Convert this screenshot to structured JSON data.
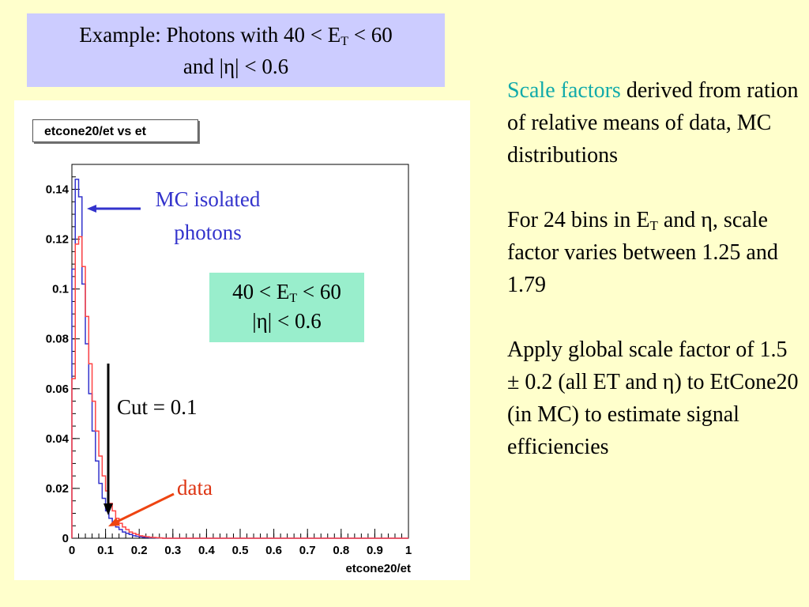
{
  "title_box": {
    "line1_prefix": "Example: Photons with 40 < E",
    "line1_sub": "T",
    "line1_suffix": " < 60",
    "line2": "and |η| < 0.6"
  },
  "annotations": {
    "mc_label_line1": "MC isolated",
    "mc_label_line2": "photons",
    "cut_box_line1_prefix": "40 < E",
    "cut_box_line1_sub": "T",
    "cut_box_line1_suffix": " < 60",
    "cut_box_line2": "|η| < 0.6",
    "cut_label": "Cut = 0.1",
    "data_label": "data"
  },
  "side_text": {
    "p1_highlight": "Scale factors",
    "p1_rest": " derived from ration of relative means of data, MC distributions",
    "p2_prefix": "For 24 bins in E",
    "p2_sub": "T",
    "p2_rest": " and η, scale factor varies between 1.25 and 1.79",
    "p3": "Apply global scale factor of 1.5 ± 0.2 (all ET and η) to EtCone20 (in MC) to estimate signal efficiencies"
  },
  "colors": {
    "background": "#ffffcc",
    "title_box": "#ccccff",
    "cut_box": "#99eecc",
    "mc": "#3333cc",
    "data": "#ff4444",
    "highlight": "#11aaaa"
  },
  "chart_data": {
    "type": "line",
    "title": "etcone20/et vs et",
    "xlabel": "etcone20/et",
    "ylabel": "",
    "xlim": [
      0,
      1
    ],
    "ylim": [
      0,
      0.15
    ],
    "xticks": [
      "0",
      "0.1",
      "0.2",
      "0.3",
      "0.4",
      "0.5",
      "0.6",
      "0.7",
      "0.8",
      "0.9",
      "1"
    ],
    "yticks": [
      "0",
      "0.02",
      "0.04",
      "0.06",
      "0.08",
      "0.1",
      "0.12",
      "0.14"
    ],
    "cut": 0.1,
    "bin_width": 0.01,
    "series": [
      {
        "name": "MC isolated photons",
        "color": "#3333cc",
        "values": [
          0.108,
          0.144,
          0.137,
          0.102,
          0.078,
          0.058,
          0.043,
          0.031,
          0.022,
          0.016,
          0.011,
          0.008,
          0.006,
          0.0045,
          0.0035,
          0.0025,
          0.002,
          0.0015,
          0.001,
          0.0008,
          0.0006,
          0.0004,
          0.0003,
          0.0002,
          0.0002,
          0.0001,
          0.0001
        ]
      },
      {
        "name": "data",
        "color": "#ff4444",
        "values": [
          0.064,
          0.118,
          0.121,
          0.109,
          0.089,
          0.07,
          0.055,
          0.043,
          0.033,
          0.025,
          0.019,
          0.014,
          0.011,
          0.008,
          0.006,
          0.0045,
          0.0035,
          0.0025,
          0.002,
          0.0015,
          0.001,
          0.0008,
          0.0006,
          0.0004,
          0.0003,
          0.0002,
          0.0001
        ]
      }
    ]
  }
}
